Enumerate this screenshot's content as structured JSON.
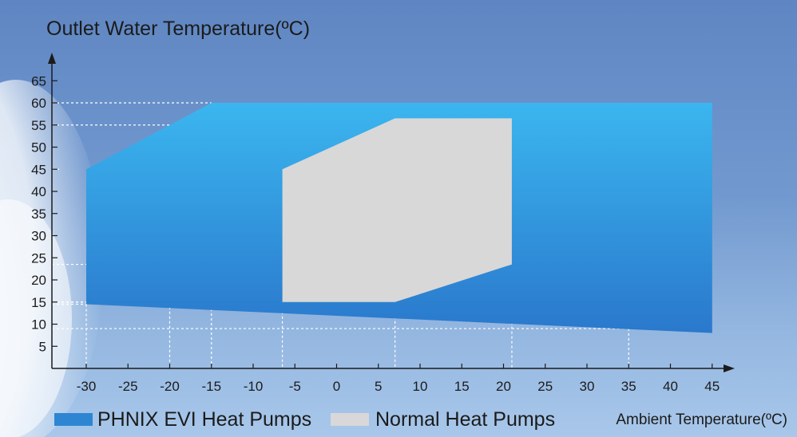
{
  "chart_data": {
    "type": "area",
    "title": "",
    "ylabel": "Outlet Water Temperature(ºC)",
    "xlabel": "Ambient Temperature(ºC)",
    "x_ticks": [
      -30,
      -25,
      -20,
      -15,
      -10,
      -5,
      0,
      5,
      10,
      15,
      20,
      25,
      30,
      35,
      40,
      45
    ],
    "y_ticks": [
      5,
      10,
      15,
      20,
      25,
      30,
      35,
      40,
      45,
      50,
      55,
      60,
      65
    ],
    "xlim": [
      -30,
      45
    ],
    "ylim": [
      0,
      65
    ],
    "grid": false,
    "legend_position": "bottom",
    "series": [
      {
        "name": "PHNIX EVI Heat Pumps",
        "color": "#2e86d2",
        "polygon": [
          [
            -30,
            45
          ],
          [
            -15,
            60
          ],
          [
            45,
            60
          ],
          [
            45,
            8
          ],
          [
            -30,
            14.5
          ]
        ]
      },
      {
        "name": "Normal Heat Pumps",
        "color": "#d8d8d8",
        "polygon": [
          [
            -6.5,
            45
          ],
          [
            7,
            56.5
          ],
          [
            21,
            56.5
          ],
          [
            21,
            23.5
          ],
          [
            7,
            15
          ],
          [
            -6.5,
            15
          ]
        ]
      }
    ],
    "reference_lines": [
      {
        "x": -30,
        "y": 14.5
      },
      {
        "x": -20,
        "y": 55
      },
      {
        "x": -15,
        "y": 60
      },
      {
        "x": -6.5,
        "y": 15
      },
      {
        "x": 7,
        "y": 15
      },
      {
        "x": 21,
        "y": 23.5
      },
      {
        "x": 35,
        "y": 9
      },
      {
        "x": null,
        "y": 45
      }
    ]
  }
}
